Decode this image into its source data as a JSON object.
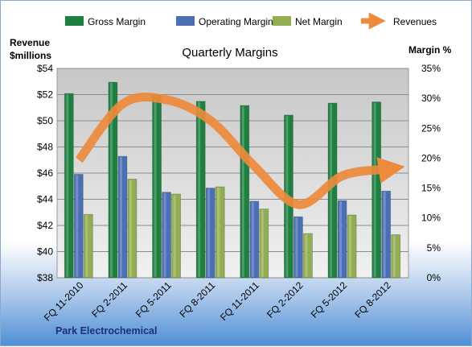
{
  "chart_data": {
    "type": "bar",
    "title": "Quarterly Margins",
    "footer": "Park Electrochemical",
    "categories": [
      "FQ 11-2010",
      "FQ 2-2011",
      "FQ 5-2011",
      "FQ 8-2011",
      "FQ 11-2011",
      "FQ 2-2012",
      "FQ 5-2012",
      "FQ 8-2012"
    ],
    "ylabel_left": [
      "Revenue",
      "$millions"
    ],
    "ylabel_right": "Margin %",
    "ylim_left": [
      38,
      54
    ],
    "ylim_right": [
      0,
      35
    ],
    "left_ticks": [
      "$38",
      "$40",
      "$42",
      "$44",
      "$46",
      "$48",
      "$50",
      "$52",
      "$54"
    ],
    "right_ticks": [
      "0%",
      "5%",
      "10%",
      "15%",
      "20%",
      "25%",
      "30%",
      "35%"
    ],
    "grid": true,
    "legend_position": "top",
    "series": [
      {
        "name": "Gross Margin",
        "kind": "bar",
        "axis": "right",
        "color": "#1e8040",
        "values": [
          30.8,
          32.7,
          30.6,
          29.5,
          28.8,
          27.2,
          29.2,
          29.4
        ]
      },
      {
        "name": "Operating Margin",
        "kind": "bar",
        "axis": "right",
        "color": "#4a6fb5",
        "values": [
          17.3,
          20.3,
          14.3,
          15.0,
          12.8,
          10.2,
          12.9,
          14.5
        ]
      },
      {
        "name": "Net Margin",
        "kind": "bar",
        "axis": "right",
        "color": "#93ad52",
        "values": [
          10.6,
          16.5,
          14.0,
          15.2,
          11.5,
          7.4,
          10.5,
          7.2
        ]
      },
      {
        "name": "Revenues",
        "kind": "line",
        "axis": "left",
        "color": "#ee8a3c",
        "values": [
          47.0,
          51.3,
          51.6,
          50.0,
          46.5,
          43.6,
          45.8,
          46.3
        ]
      }
    ]
  }
}
